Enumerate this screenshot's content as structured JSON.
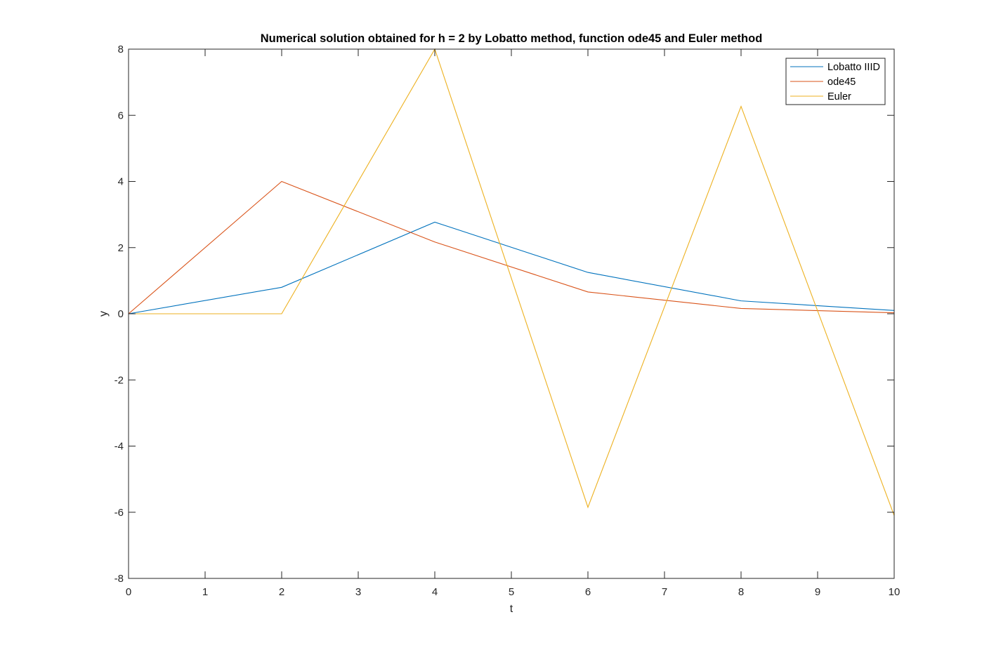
{
  "chart_data": {
    "type": "line",
    "title": "Numerical solution obtained for h = 2 by Lobatto method, function ode45 and Euler method",
    "xlabel": "t",
    "ylabel": "y",
    "xlim": [
      0,
      10
    ],
    "ylim": [
      -8,
      8
    ],
    "xticks": [
      0,
      1,
      2,
      3,
      4,
      5,
      6,
      7,
      8,
      9,
      10
    ],
    "xtick_labels": [
      "0",
      "1",
      "2",
      "3",
      "4",
      "5",
      "6",
      "7",
      "8",
      "9",
      "10"
    ],
    "yticks": [
      -8,
      -6,
      -4,
      -2,
      0,
      2,
      4,
      6,
      8
    ],
    "ytick_labels": [
      "-8",
      "-6",
      "-4",
      "-2",
      "0",
      "2",
      "4",
      "6",
      "8"
    ],
    "grid": false,
    "legend_position": "top-right",
    "x": [
      0,
      2,
      4,
      6,
      8,
      10
    ],
    "series": [
      {
        "name": "Lobatto IIID",
        "color": "#0072BD",
        "values": [
          0,
          0.8,
          2.77,
          1.25,
          0.39,
          0.1
        ]
      },
      {
        "name": "ode45",
        "color": "#D95319",
        "values": [
          0,
          4.0,
          2.17,
          0.66,
          0.16,
          0.03
        ]
      },
      {
        "name": "Euler",
        "color": "#EDB120",
        "values": [
          0,
          0,
          8.0,
          -5.85,
          6.27,
          -6.1
        ]
      }
    ]
  }
}
